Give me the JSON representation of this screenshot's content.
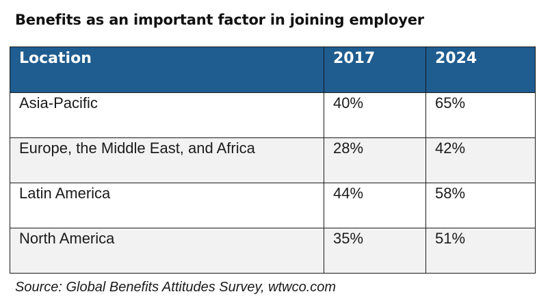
{
  "chart_data": {
    "type": "table",
    "title": "Benefits as an important factor in joining employer",
    "columns": [
      "Location",
      "2017",
      "2024"
    ],
    "rows": [
      [
        "Asia-Pacific",
        "40%",
        "65%"
      ],
      [
        "Europe, the Middle East, and Africa",
        "28%",
        "42%"
      ],
      [
        "Latin America",
        "44%",
        "58%"
      ],
      [
        "North America",
        "35%",
        "51%"
      ]
    ],
    "source": "Source: Global Benefits Attitudes Survey, wtwco.com",
    "colors": {
      "header_bg": "#1f5c8f",
      "header_text": "#ffffff",
      "alt_row_bg": "#f2f2f2"
    }
  }
}
